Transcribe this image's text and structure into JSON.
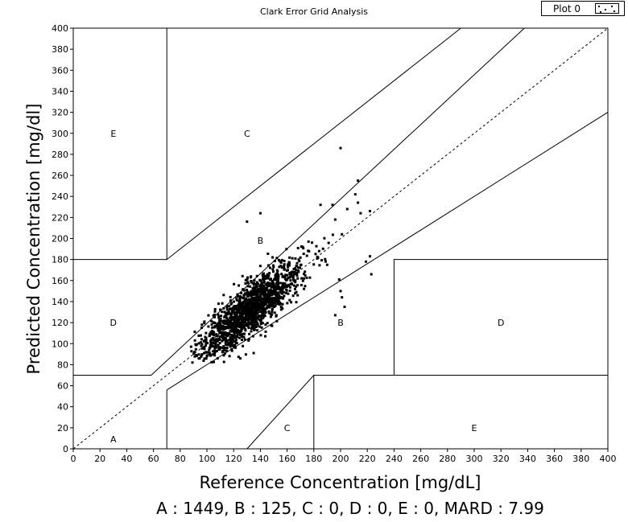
{
  "chart_data": {
    "type": "scatter",
    "title": "Clark Error Grid Analysis",
    "xlabel": "Reference Concentration [mg/dL]",
    "ylabel": "Predicted Concentration [mg/dl]",
    "xlim": [
      0,
      400
    ],
    "ylim": [
      0,
      400
    ],
    "x_ticks": [
      0,
      20,
      40,
      60,
      80,
      100,
      120,
      140,
      160,
      180,
      200,
      220,
      240,
      260,
      280,
      300,
      320,
      340,
      360,
      380,
      400
    ],
    "y_ticks": [
      0,
      20,
      40,
      60,
      80,
      100,
      120,
      140,
      160,
      180,
      200,
      220,
      240,
      260,
      280,
      300,
      320,
      340,
      360,
      380,
      400
    ],
    "grid": false,
    "legend": {
      "placement": "top-right",
      "entries": [
        "Plot 0"
      ]
    },
    "series": [
      {
        "name": "Plot 0",
        "marker": "square",
        "color": "#000000",
        "cloud": {
          "n": 1574,
          "x_mean": 133,
          "x_sd": 19,
          "y_mean": 133,
          "y_sd": 19,
          "correlation": 0.82,
          "residual_sd": 12,
          "x_range": [
            88,
            225
          ],
          "y_range": [
            82,
            287
          ]
        },
        "points": [
          [
            200,
            286
          ],
          [
            213,
            255
          ],
          [
            211,
            242
          ],
          [
            222,
            226
          ],
          [
            215,
            224
          ],
          [
            222,
            183
          ],
          [
            219,
            178
          ],
          [
            223,
            166
          ],
          [
            199,
            161
          ],
          [
            201,
            144
          ],
          [
            203,
            135
          ],
          [
            196,
            127
          ],
          [
            201,
            204
          ],
          [
            213,
            234
          ],
          [
            205,
            228
          ],
          [
            140,
            224
          ],
          [
            130,
            216
          ],
          [
            185,
            232
          ],
          [
            91,
            103
          ],
          [
            94,
            86
          ],
          [
            100,
            88
          ],
          [
            125,
            86
          ],
          [
            135,
            91
          ],
          [
            103,
            111
          ],
          [
            194,
            232
          ],
          [
            190,
            175
          ],
          [
            200,
            150
          ],
          [
            176,
            197
          ],
          [
            184,
            188
          ],
          [
            196,
            218
          ]
        ]
      }
    ],
    "zone_lines": [
      {
        "role": "identity",
        "style": "dashed",
        "points": [
          [
            0,
            0
          ],
          [
            400,
            400
          ]
        ]
      },
      {
        "role": "boundary",
        "points": [
          [
            70,
            400
          ],
          [
            70,
            180
          ],
          [
            290,
            400
          ]
        ]
      },
      {
        "role": "boundary",
        "points": [
          [
            0,
            180
          ],
          [
            70,
            180
          ]
        ]
      },
      {
        "role": "boundary",
        "points": [
          [
            0,
            70
          ],
          [
            58.33,
            70
          ],
          [
            337.5,
            400
          ]
        ]
      },
      {
        "role": "boundary",
        "points": [
          [
            70,
            56
          ],
          [
            400,
            320
          ]
        ]
      },
      {
        "role": "boundary",
        "points": [
          [
            70,
            0
          ],
          [
            70,
            56
          ]
        ]
      },
      {
        "role": "boundary",
        "points": [
          [
            130,
            0
          ],
          [
            180,
            70
          ]
        ]
      },
      {
        "role": "boundary",
        "points": [
          [
            180,
            0
          ],
          [
            180,
            70
          ],
          [
            400,
            70
          ]
        ]
      },
      {
        "role": "boundary",
        "points": [
          [
            240,
            70
          ],
          [
            240,
            180
          ],
          [
            400,
            180
          ]
        ]
      }
    ],
    "annotations": [
      {
        "text": "E",
        "x": 30,
        "y": 300
      },
      {
        "text": "C",
        "x": 130,
        "y": 300
      },
      {
        "text": "B",
        "x": 140,
        "y": 198
      },
      {
        "text": "D",
        "x": 30,
        "y": 120
      },
      {
        "text": "B",
        "x": 200,
        "y": 120
      },
      {
        "text": "D",
        "x": 320,
        "y": 120
      },
      {
        "text": "A",
        "x": 30,
        "y": 9
      },
      {
        "text": "C",
        "x": 160,
        "y": 20
      },
      {
        "text": "E",
        "x": 300,
        "y": 20
      }
    ]
  },
  "stats_text": "A : 1449, B : 125, C : 0, D : 0, E : 0, MARD : 7.99"
}
